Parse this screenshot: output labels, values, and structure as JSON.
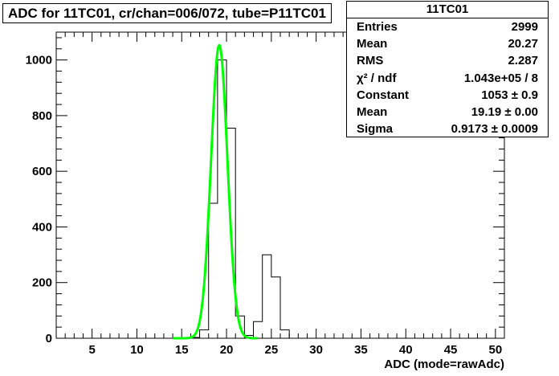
{
  "title": "ADC for 11TC01,  cr/chan=006/072,  tube=P11TC01",
  "stats": {
    "name": "11TC01",
    "rows": [
      {
        "key": "Entries",
        "value": "2999"
      },
      {
        "key": "Mean",
        "value": "20.27"
      },
      {
        "key": "RMS",
        "value": "2.287"
      },
      {
        "key": "χ² / ndf",
        "value": "1.043e+05 / 8"
      },
      {
        "key": "Constant",
        "value": "1053 ± 0.9"
      },
      {
        "key": "Mean",
        "value": "19.19 ± 0.00"
      },
      {
        "key": "Sigma",
        "value": "0.9173 ± 0.0009"
      }
    ]
  },
  "chart_data": {
    "type": "histogram",
    "xlabel": "ADC (mode=rawAdc)",
    "ylabel": "",
    "xlim": [
      1,
      51
    ],
    "ylim": [
      0,
      1100
    ],
    "x_ticks": [
      5,
      10,
      15,
      20,
      25,
      30,
      35,
      40,
      45,
      50
    ],
    "y_ticks": [
      0,
      200,
      400,
      600,
      800,
      1000
    ],
    "bin_width": 1,
    "bins": [
      {
        "x0": 16,
        "value": 3
      },
      {
        "x0": 17,
        "value": 30
      },
      {
        "x0": 18,
        "value": 485
      },
      {
        "x0": 19,
        "value": 1000
      },
      {
        "x0": 20,
        "value": 755
      },
      {
        "x0": 21,
        "value": 80
      },
      {
        "x0": 22,
        "value": 10
      },
      {
        "x0": 23,
        "value": 60
      },
      {
        "x0": 24,
        "value": 300
      },
      {
        "x0": 25,
        "value": 220
      },
      {
        "x0": 26,
        "value": 30
      }
    ],
    "fit": {
      "function": "gaus",
      "constant": 1053,
      "mean": 19.19,
      "sigma": 0.9173,
      "range": [
        14,
        23.5
      ],
      "color": "#00ff00"
    },
    "line_color": "#000000"
  }
}
